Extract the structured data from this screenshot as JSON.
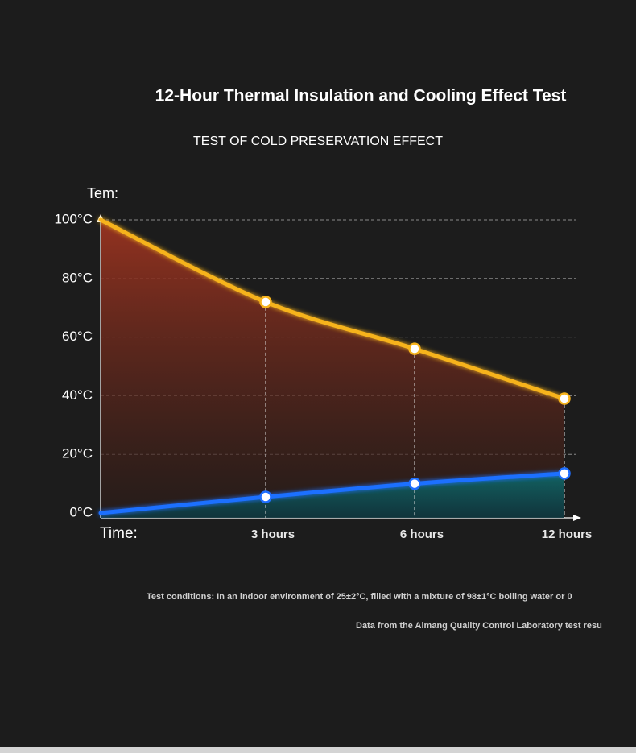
{
  "chart_data": {
    "type": "line",
    "title": "12-Hour Thermal Insulation and Cooling Effect Test",
    "subtitle": "TEST OF COLD PRESERVATION EFFECT",
    "y_label": "Tem:",
    "x_label": "Time:",
    "categories": [
      null,
      "3 hours",
      "6 hours",
      "12 hours"
    ],
    "series": [
      {
        "name": null,
        "color": "#f6b31c",
        "values": [
          100,
          72,
          56,
          39
        ]
      },
      {
        "name": null,
        "color": "#1f6fff",
        "values": [
          0,
          5.5,
          10,
          13.5
        ]
      }
    ],
    "ylim": [
      0,
      100
    ],
    "yticks": [
      {
        "value": 0,
        "label": "0°C"
      },
      {
        "value": 20,
        "label": "20°C"
      },
      {
        "value": 40,
        "label": "40°C"
      },
      {
        "value": 60,
        "label": "60°C"
      },
      {
        "value": 80,
        "label": "80°C"
      },
      {
        "value": 100,
        "label": "100°C"
      }
    ],
    "grid": true,
    "notes": [
      "Test conditions: In an indoor environment of 25±2°C, filled with a mixture of 98±1°C boiling water or 0",
      "Data from the Aimang Quality Control Laboratory test resu"
    ]
  }
}
